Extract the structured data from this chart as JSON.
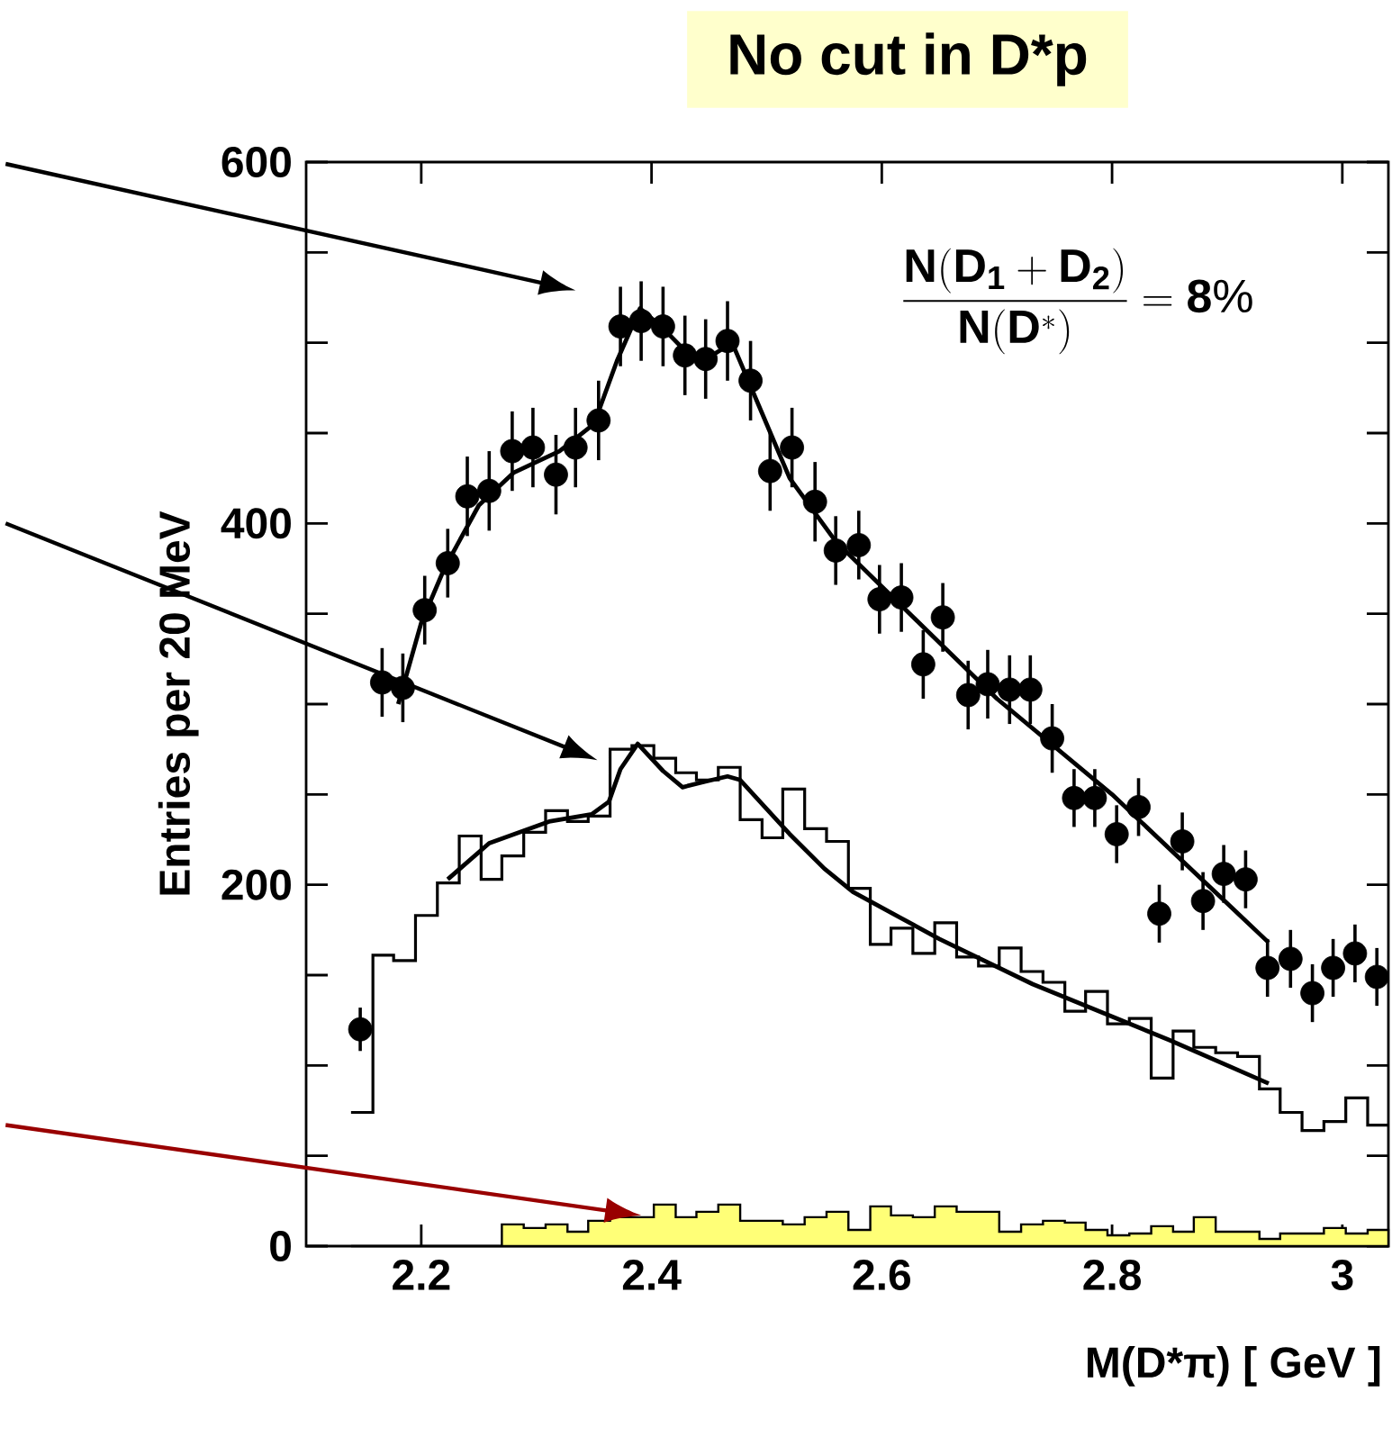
{
  "chart_data": {
    "type": "scatter",
    "title": "No cut in D*p",
    "xlabel": "M(D*π) [ GeV ]",
    "ylabel": "Entries per 20 MeV",
    "annotations": [
      "\\frac{\\mathbf{N(D_1+D_2)}}{\\mathbf{N(D^*)}}=\\mathbf{8\\%}"
    ],
    "xlim": [
      2.1,
      3.04
    ],
    "ylim": [
      0,
      600
    ],
    "xticks": [
      2.2,
      2.4,
      2.6,
      2.8,
      3
    ],
    "yticks": [
      0,
      {
        "value": 50,
        "label": null
      },
      {
        "value": 100,
        "label": null
      },
      {
        "value": 150,
        "label": null
      },
      200,
      {
        "value": 250,
        "label": null
      },
      {
        "value": 300,
        "label": null
      },
      {
        "value": 350,
        "label": null
      },
      400,
      {
        "value": 450,
        "label": null
      },
      {
        "value": 500,
        "label": null
      },
      {
        "value": 550,
        "label": null
      },
      600
    ],
    "series": [
      {
        "type": "step",
        "color": "#000000",
        "x": [
          2.139,
          2.158,
          2.176,
          2.195,
          2.214,
          2.233,
          2.252,
          2.27,
          2.289,
          2.308,
          2.327,
          2.345,
          2.364,
          2.383,
          2.402,
          2.421,
          2.439,
          2.458,
          2.477,
          2.496,
          2.514,
          2.533,
          2.552,
          2.571,
          2.59,
          2.608,
          2.627,
          2.646,
          2.665,
          2.684,
          2.702,
          2.721,
          2.74,
          2.759,
          2.777,
          2.796,
          2.815,
          2.834,
          2.853,
          2.871,
          2.89,
          2.909,
          2.928,
          2.946,
          2.965,
          2.984,
          3.003,
          3.022,
          3.04
        ],
        "values": [
          74,
          161,
          158,
          183,
          201,
          227,
          203,
          216,
          229,
          241,
          235,
          238,
          275,
          277,
          270,
          262,
          258,
          265,
          236,
          226,
          253,
          231,
          224,
          198,
          167,
          176,
          162,
          179,
          160,
          155,
          165,
          152,
          146,
          130,
          141,
          123,
          126,
          93,
          119,
          110,
          107,
          105,
          87,
          74,
          64,
          69,
          82,
          67,
          67
        ]
      },
      {
        "type": "histogram",
        "color": "#ffff77",
        "bins": [
          2.139,
          2.158,
          2.176,
          2.195,
          2.214,
          2.233,
          2.252,
          2.27,
          2.289,
          2.308,
          2.327,
          2.345,
          2.364,
          2.383,
          2.402,
          2.421,
          2.439,
          2.458,
          2.477,
          2.496,
          2.514,
          2.533,
          2.552,
          2.571,
          2.59,
          2.608,
          2.627,
          2.646,
          2.665,
          2.684,
          2.702,
          2.721,
          2.74,
          2.759,
          2.777,
          2.796,
          2.815,
          2.834,
          2.853,
          2.871,
          2.89,
          2.909,
          2.928,
          2.946,
          2.965,
          2.984,
          3.003,
          3.022,
          3.04
        ],
        "values": [
          0,
          0,
          0,
          0,
          0,
          0,
          0,
          12,
          10,
          12,
          8,
          14,
          16,
          16,
          23,
          16,
          19,
          23,
          14,
          14,
          12,
          16,
          19,
          9,
          22,
          17,
          16,
          22,
          19,
          19,
          8,
          12,
          14,
          13,
          9,
          6,
          7,
          11,
          8,
          16,
          8,
          8,
          4,
          7,
          7,
          10,
          7,
          9
        ]
      },
      {
        "type": "line",
        "color": "#000000",
        "x": [
          2.223,
          2.259,
          2.311,
          2.348,
          2.363,
          2.373,
          2.388,
          2.41,
          2.427,
          2.446,
          2.466,
          2.477,
          2.52,
          2.55,
          2.575,
          2.65,
          2.731,
          2.85,
          2.936
        ],
        "values": [
          203,
          223,
          235,
          239,
          246,
          264,
          278,
          263,
          254,
          257,
          260,
          258,
          228,
          209,
          196,
          170,
          145,
          114,
          90
        ]
      },
      {
        "type": "line",
        "color": "#000000",
        "x": [
          2.18,
          2.2,
          2.22,
          2.25,
          2.28,
          2.32,
          2.35,
          2.37,
          2.39,
          2.41,
          2.43,
          2.45,
          2.47,
          2.5,
          2.52,
          2.56,
          2.6,
          2.7,
          2.8,
          2.936
        ],
        "values": [
          300,
          345,
          375,
          410,
          428,
          440,
          455,
          490,
          519,
          508,
          495,
          492,
          500,
          455,
          425,
          390,
          365,
          303,
          250,
          168
        ]
      },
      {
        "type": "scatter",
        "color": "#000000",
        "marker": "circle",
        "x": [
          2.147,
          2.166,
          2.184,
          2.203,
          2.223,
          2.24,
          2.259,
          2.279,
          2.297,
          2.317,
          2.334,
          2.354,
          2.373,
          2.391,
          2.41,
          2.429,
          2.447,
          2.466,
          2.486,
          2.503,
          2.522,
          2.542,
          2.56,
          2.58,
          2.598,
          2.617,
          2.636,
          2.653,
          2.675,
          2.692,
          2.711,
          2.729,
          2.748,
          2.767,
          2.785,
          2.804,
          2.823,
          2.841,
          2.861,
          2.879,
          2.897,
          2.916,
          2.935,
          2.955,
          2.974,
          2.992,
          3.011,
          3.03
        ],
        "values": [
          120,
          312,
          309,
          352,
          378,
          415,
          418,
          440,
          442,
          427,
          442,
          457,
          509,
          512,
          509,
          493,
          491,
          501,
          479,
          429,
          442,
          412,
          385,
          388,
          358,
          359,
          322,
          348,
          305,
          311,
          308,
          308,
          281,
          248,
          248,
          228,
          243,
          184,
          224,
          191,
          206,
          203,
          154,
          159,
          140,
          154,
          162,
          149
        ],
        "errors": [
          12,
          19,
          19,
          19,
          19,
          22,
          22,
          22,
          22,
          22,
          22,
          22,
          22,
          22,
          22,
          22,
          22,
          22,
          22,
          22,
          22,
          22,
          19,
          19,
          19,
          19,
          19,
          19,
          19,
          19,
          19,
          19,
          19,
          16,
          16,
          16,
          16,
          16,
          16,
          16,
          16,
          16,
          16,
          16,
          16,
          16,
          16,
          16
        ]
      }
    ]
  }
}
